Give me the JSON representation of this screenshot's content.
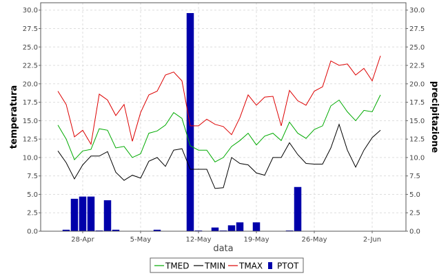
{
  "chart_data": {
    "type": "line+bar",
    "xlabel": "data",
    "ylabel_left": "temperatura",
    "ylabel_right": "precipitazione",
    "ylim": [
      0,
      31
    ],
    "y_ticks": [
      "0.0",
      "2.5",
      "5.0",
      "7.5",
      "10.0",
      "12.5",
      "15.0",
      "17.5",
      "20.0",
      "22.5",
      "25.0",
      "27.5",
      "30.0"
    ],
    "x_tick_labels": [
      "28-Apr",
      "5-May",
      "12-May",
      "19-May",
      "26-May",
      "2-Jun"
    ],
    "grid": true,
    "legend_position": "bottom",
    "dates": [
      "25-Apr",
      "26-Apr",
      "27-Apr",
      "28-Apr",
      "29-Apr",
      "30-Apr",
      "1-May",
      "2-May",
      "3-May",
      "4-May",
      "5-May",
      "6-May",
      "7-May",
      "8-May",
      "9-May",
      "10-May",
      "11-May",
      "12-May",
      "13-May",
      "14-May",
      "15-May",
      "16-May",
      "17-May",
      "18-May",
      "19-May",
      "20-May",
      "21-May",
      "22-May",
      "23-May",
      "24-May",
      "25-May",
      "26-May",
      "27-May",
      "28-May",
      "29-May",
      "30-May",
      "31-May",
      "1-Jun",
      "2-Jun",
      "3-Jun"
    ],
    "series": [
      {
        "name": "TMED",
        "type": "line",
        "color": "#00aa00",
        "values": [
          14.4,
          12.5,
          9.7,
          10.9,
          11.1,
          13.9,
          13.7,
          11.3,
          11.5,
          10.0,
          10.5,
          13.3,
          13.6,
          14.4,
          16.1,
          15.3,
          11.6,
          11.0,
          11.0,
          9.4,
          10.0,
          11.5,
          12.3,
          13.3,
          11.7,
          12.9,
          13.3,
          12.3,
          14.8,
          13.3,
          12.6,
          13.8,
          14.3,
          17.0,
          17.8,
          16.2,
          15.0,
          16.4,
          16.2,
          18.5
        ]
      },
      {
        "name": "TMIN",
        "type": "line",
        "color": "#000000",
        "values": [
          10.9,
          9.3,
          7.1,
          9.0,
          10.2,
          10.2,
          10.8,
          8.0,
          6.9,
          7.6,
          7.2,
          9.5,
          10.0,
          8.8,
          11.0,
          11.2,
          8.4,
          8.4,
          8.4,
          5.8,
          5.9,
          10.0,
          9.2,
          9.0,
          7.9,
          7.6,
          10.0,
          10.0,
          12.0,
          10.4,
          9.2,
          9.1,
          9.1,
          11.3,
          14.5,
          11.0,
          8.7,
          11.0,
          12.7,
          13.7
        ]
      },
      {
        "name": "TMAX",
        "type": "line",
        "color": "#dd0000",
        "values": [
          19.0,
          17.2,
          12.8,
          13.7,
          11.8,
          18.6,
          17.8,
          15.7,
          17.2,
          12.2,
          16.1,
          18.5,
          19.0,
          21.2,
          21.6,
          20.4,
          14.3,
          14.3,
          15.2,
          14.5,
          14.2,
          13.1,
          15.4,
          18.5,
          17.1,
          18.2,
          18.3,
          14.3,
          19.1,
          17.7,
          17.1,
          19.0,
          19.6,
          23.1,
          22.5,
          22.7,
          21.2,
          22.1,
          20.4,
          23.8
        ]
      },
      {
        "name": "PTOT",
        "type": "bar",
        "color": "#0000aa",
        "values": [
          0,
          0.2,
          4.4,
          4.7,
          4.7,
          0.1,
          4.2,
          0.2,
          0,
          0,
          0,
          0,
          0.2,
          0,
          0,
          0,
          29.6,
          0.1,
          0,
          0.5,
          0.1,
          0.8,
          1.2,
          0,
          1.2,
          0,
          0,
          0,
          0.1,
          6.0,
          0,
          0,
          0,
          0,
          0,
          0,
          0,
          0,
          0,
          0
        ]
      }
    ]
  }
}
